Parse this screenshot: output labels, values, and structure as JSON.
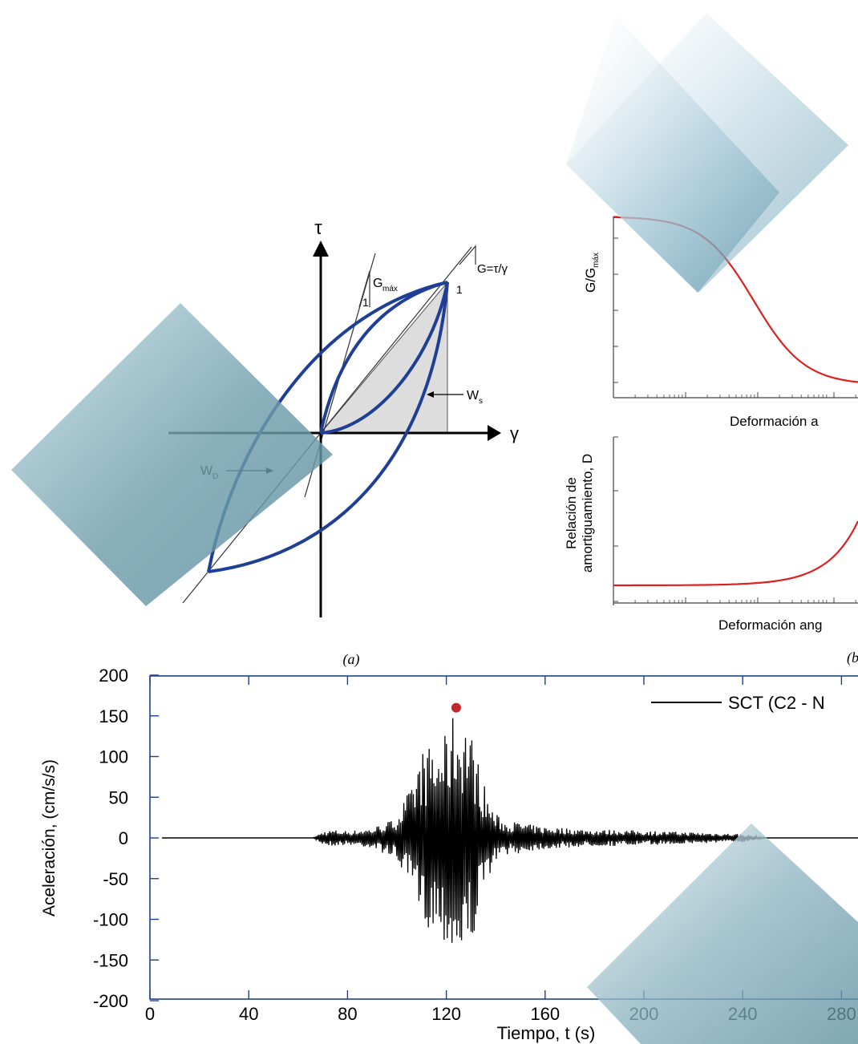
{
  "hysteresis": {
    "tau_label": "τ",
    "gamma_label": "γ",
    "gmax_label": "G",
    "gmax_sub": "máx",
    "one_left": "1",
    "g_secant_label": "G=τ/γ",
    "one_right": "1",
    "ws_label": "W",
    "ws_sub": "s",
    "wd_label": "W",
    "wd_sub": "D",
    "panel_label": "(a)",
    "loop_color": "#1f3f96"
  },
  "degradation": {
    "top_ylabel_main": "G/G",
    "top_ylabel_sub": "máx",
    "top_xlabel": "Deformación a",
    "bottom_ylabel_line1": "Relación de",
    "bottom_ylabel_line2": "amortiguamiento, D",
    "bottom_xlabel": "Deformación ang",
    "panel_label": "(b",
    "curve_color": "#dd2020"
  },
  "accelerogram": {
    "ylabel": "Aceleración, (cm/s/s)",
    "xlabel": "Tiempo, t (s)",
    "legend": "SCT (C2 - N",
    "yticks": [
      "200",
      "150",
      "100",
      "50",
      "0",
      "-50",
      "-100",
      "-150",
      "-200"
    ],
    "xticks": [
      "0",
      "40",
      "80",
      "120",
      "160",
      "200",
      "240",
      "280"
    ],
    "axis_color": "#1f3f96",
    "peak_color": "#c0272d"
  },
  "chart_data": [
    {
      "type": "line",
      "xlabel": "γ",
      "ylabel": "τ",
      "annotations": [
        "G",
        "máx",
        "1",
        "G=τ/γ",
        "1",
        "W",
        "s",
        "W",
        "D",
        "(a)"
      ]
    },
    {
      "type": "line",
      "xlabel": "Deformación a",
      "ylabel": "G/Gmáx",
      "xscale": "log"
    },
    {
      "type": "line",
      "xlabel": "Deformación ang",
      "ylabel": "Relación de amortiguamiento, D",
      "xscale": "log"
    },
    {
      "type": "line",
      "xlabel": "Tiempo, t (s)",
      "ylabel": "Aceleración, (cm/s/s)",
      "xlim": [
        0,
        290
      ],
      "ylim": [
        -200,
        200
      ],
      "xticks": [
        0,
        40,
        80,
        120,
        160,
        200,
        240,
        280
      ],
      "yticks": [
        -200,
        -150,
        -100,
        -50,
        0,
        50,
        100,
        150,
        200
      ],
      "series": [
        {
          "name": "SCT (C2 - N",
          "x": [
            66,
            70,
            74,
            78,
            82,
            86,
            90,
            94,
            98,
            100,
            102,
            104,
            106,
            108,
            110,
            112,
            114,
            116,
            118,
            120,
            122,
            124,
            125,
            126,
            128,
            130,
            132,
            134,
            136,
            138,
            140,
            144,
            148,
            152,
            156,
            160,
            170,
            180,
            190,
            200,
            210,
            220,
            230,
            240,
            250
          ],
          "y": [
            0,
            8,
            -10,
            9,
            -9,
            11,
            -12,
            18,
            -22,
            30,
            -40,
            55,
            -60,
            85,
            -110,
            105,
            -120,
            100,
            -128,
            125,
            -150,
            158,
            -140,
            150,
            -150,
            130,
            -110,
            80,
            -60,
            40,
            -30,
            20,
            -20,
            18,
            -15,
            14,
            -12,
            10,
            -10,
            9,
            -8,
            7,
            -6,
            5,
            0
          ]
        }
      ],
      "peak": {
        "x": 124,
        "y": 160
      },
      "legend_position": "top-right"
    }
  ]
}
